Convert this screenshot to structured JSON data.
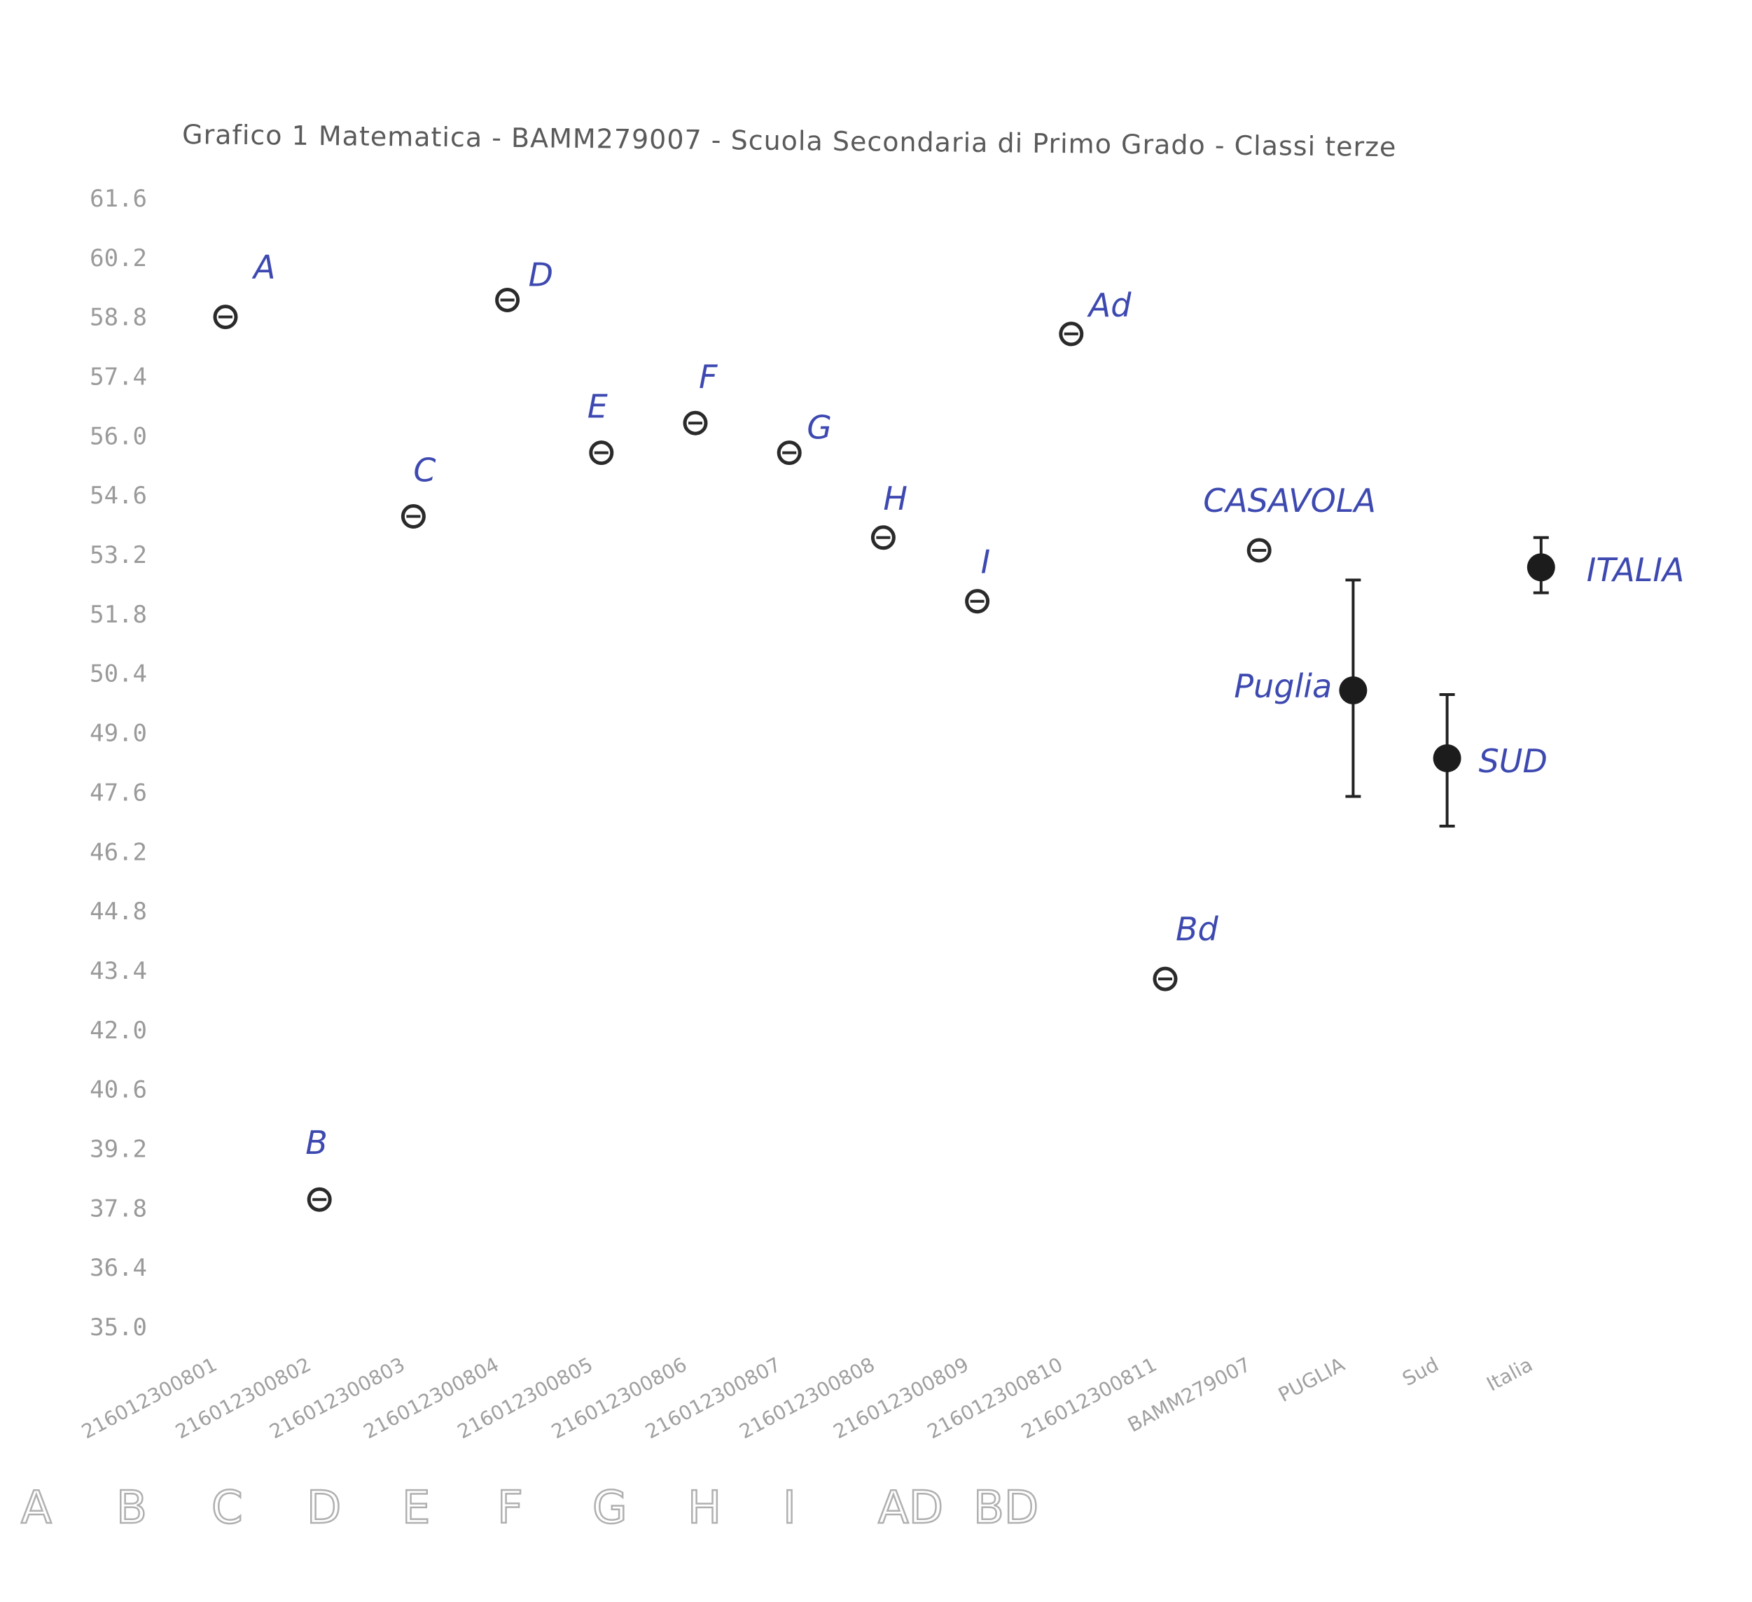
{
  "chart_data": {
    "type": "scatter",
    "title": "Grafico 1 Matematica - BAMM279007 - Scuola Secondaria di Primo Grado - Classi terze",
    "xlabel": "",
    "ylabel": "",
    "ylim": [
      35.0,
      61.6
    ],
    "yticks": [
      "61.6",
      "60.2",
      "58.8",
      "57.4",
      "56.0",
      "54.6",
      "53.2",
      "51.8",
      "50.4",
      "49.0",
      "47.6",
      "46.2",
      "44.8",
      "43.4",
      "42.0",
      "40.6",
      "39.2",
      "37.8",
      "36.4",
      "35.0"
    ],
    "categories": [
      "216012300801",
      "216012300802",
      "216012300803",
      "216012300804",
      "216012300805",
      "216012300806",
      "216012300807",
      "216012300808",
      "216012300809",
      "216012300810",
      "216012300811",
      "BAMM279007",
      "PUGLIA",
      "Sud",
      "Italia"
    ],
    "grid": false,
    "series": [
      {
        "marker": "open-circle",
        "points": [
          {
            "x": "216012300801",
            "y": 58.8
          },
          {
            "x": "216012300802",
            "y": 38.0
          },
          {
            "x": "216012300803",
            "y": 54.1
          },
          {
            "x": "216012300804",
            "y": 59.2
          },
          {
            "x": "216012300805",
            "y": 55.6
          },
          {
            "x": "216012300806",
            "y": 56.3
          },
          {
            "x": "216012300807",
            "y": 55.6
          },
          {
            "x": "216012300808",
            "y": 53.6
          },
          {
            "x": "216012300809",
            "y": 52.1
          },
          {
            "x": "216012300810",
            "y": 58.4
          },
          {
            "x": "216012300811",
            "y": 43.2
          },
          {
            "x": "BAMM279007",
            "y": 53.3
          }
        ]
      },
      {
        "marker": "filled-circle-errorbar",
        "points": [
          {
            "x": "PUGLIA",
            "y": 50.0,
            "low": 47.5,
            "high": 52.6
          },
          {
            "x": "Sud",
            "y": 48.4,
            "low": 46.8,
            "high": 49.9
          },
          {
            "x": "Italia",
            "y": 52.9,
            "low": 52.3,
            "high": 53.6
          }
        ]
      }
    ],
    "annotations": [
      {
        "text": "A",
        "x": "216012300801"
      },
      {
        "text": "B",
        "x": "216012300802"
      },
      {
        "text": "C",
        "x": "216012300803"
      },
      {
        "text": "D",
        "x": "216012300804"
      },
      {
        "text": "E",
        "x": "216012300805"
      },
      {
        "text": "F",
        "x": "216012300806"
      },
      {
        "text": "G",
        "x": "216012300807"
      },
      {
        "text": "H",
        "x": "216012300808"
      },
      {
        "text": "I",
        "x": "216012300809"
      },
      {
        "text": "Ad",
        "x": "216012300810"
      },
      {
        "text": "Bd",
        "x": "216012300811"
      },
      {
        "text": "CASAVOLA",
        "x": "BAMM279007"
      },
      {
        "text": "Puglia",
        "x": "PUGLIA"
      },
      {
        "text": "SUD",
        "x": "Sud"
      },
      {
        "text": "ITALIA",
        "x": "Italia"
      }
    ],
    "pencil_labels": [
      "A",
      "B",
      "C",
      "D",
      "E",
      "F",
      "G",
      "H",
      "I",
      "AD",
      "BD"
    ]
  }
}
